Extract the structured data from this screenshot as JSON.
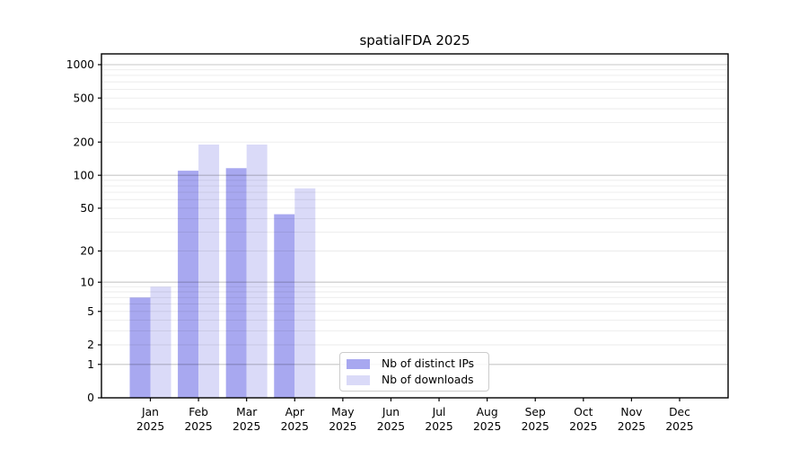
{
  "title": "spatialFDA 2025",
  "chart_data": {
    "type": "bar",
    "title": "spatialFDA 2025",
    "y_scale": "log1p",
    "grid": true,
    "legend_position": "lower center (inside axes)",
    "categories": [
      "Jan 2025",
      "Feb 2025",
      "Mar 2025",
      "Apr 2025",
      "May 2025",
      "Jun 2025",
      "Jul 2025",
      "Aug 2025",
      "Sep 2025",
      "Oct 2025",
      "Nov 2025",
      "Dec 2025"
    ],
    "series": [
      {
        "name": "Nb of distinct IPs",
        "color": "#a8a8f0",
        "values": [
          7,
          110,
          116,
          44,
          0,
          0,
          0,
          0,
          0,
          0,
          0,
          0
        ]
      },
      {
        "name": "Nb of downloads",
        "color": "#dadaf8",
        "values": [
          9,
          190,
          190,
          76,
          0,
          0,
          0,
          0,
          0,
          0,
          0,
          0
        ]
      }
    ],
    "yticks": [
      0,
      1,
      2,
      5,
      10,
      20,
      50,
      100,
      200,
      500,
      1000
    ],
    "ylim": [
      0,
      1250
    ],
    "xlabel": "",
    "ylabel": ""
  },
  "colors": {
    "bar_ips": "#a8a8f0",
    "bar_downloads": "#dadaf8",
    "grid_major": "rgba(0,0,0,0.22)",
    "grid_minor": "rgba(0,0,0,0.08)",
    "axis": "#000000",
    "text": "#000000",
    "legend_border": "#cccccc",
    "background": "#ffffff"
  }
}
